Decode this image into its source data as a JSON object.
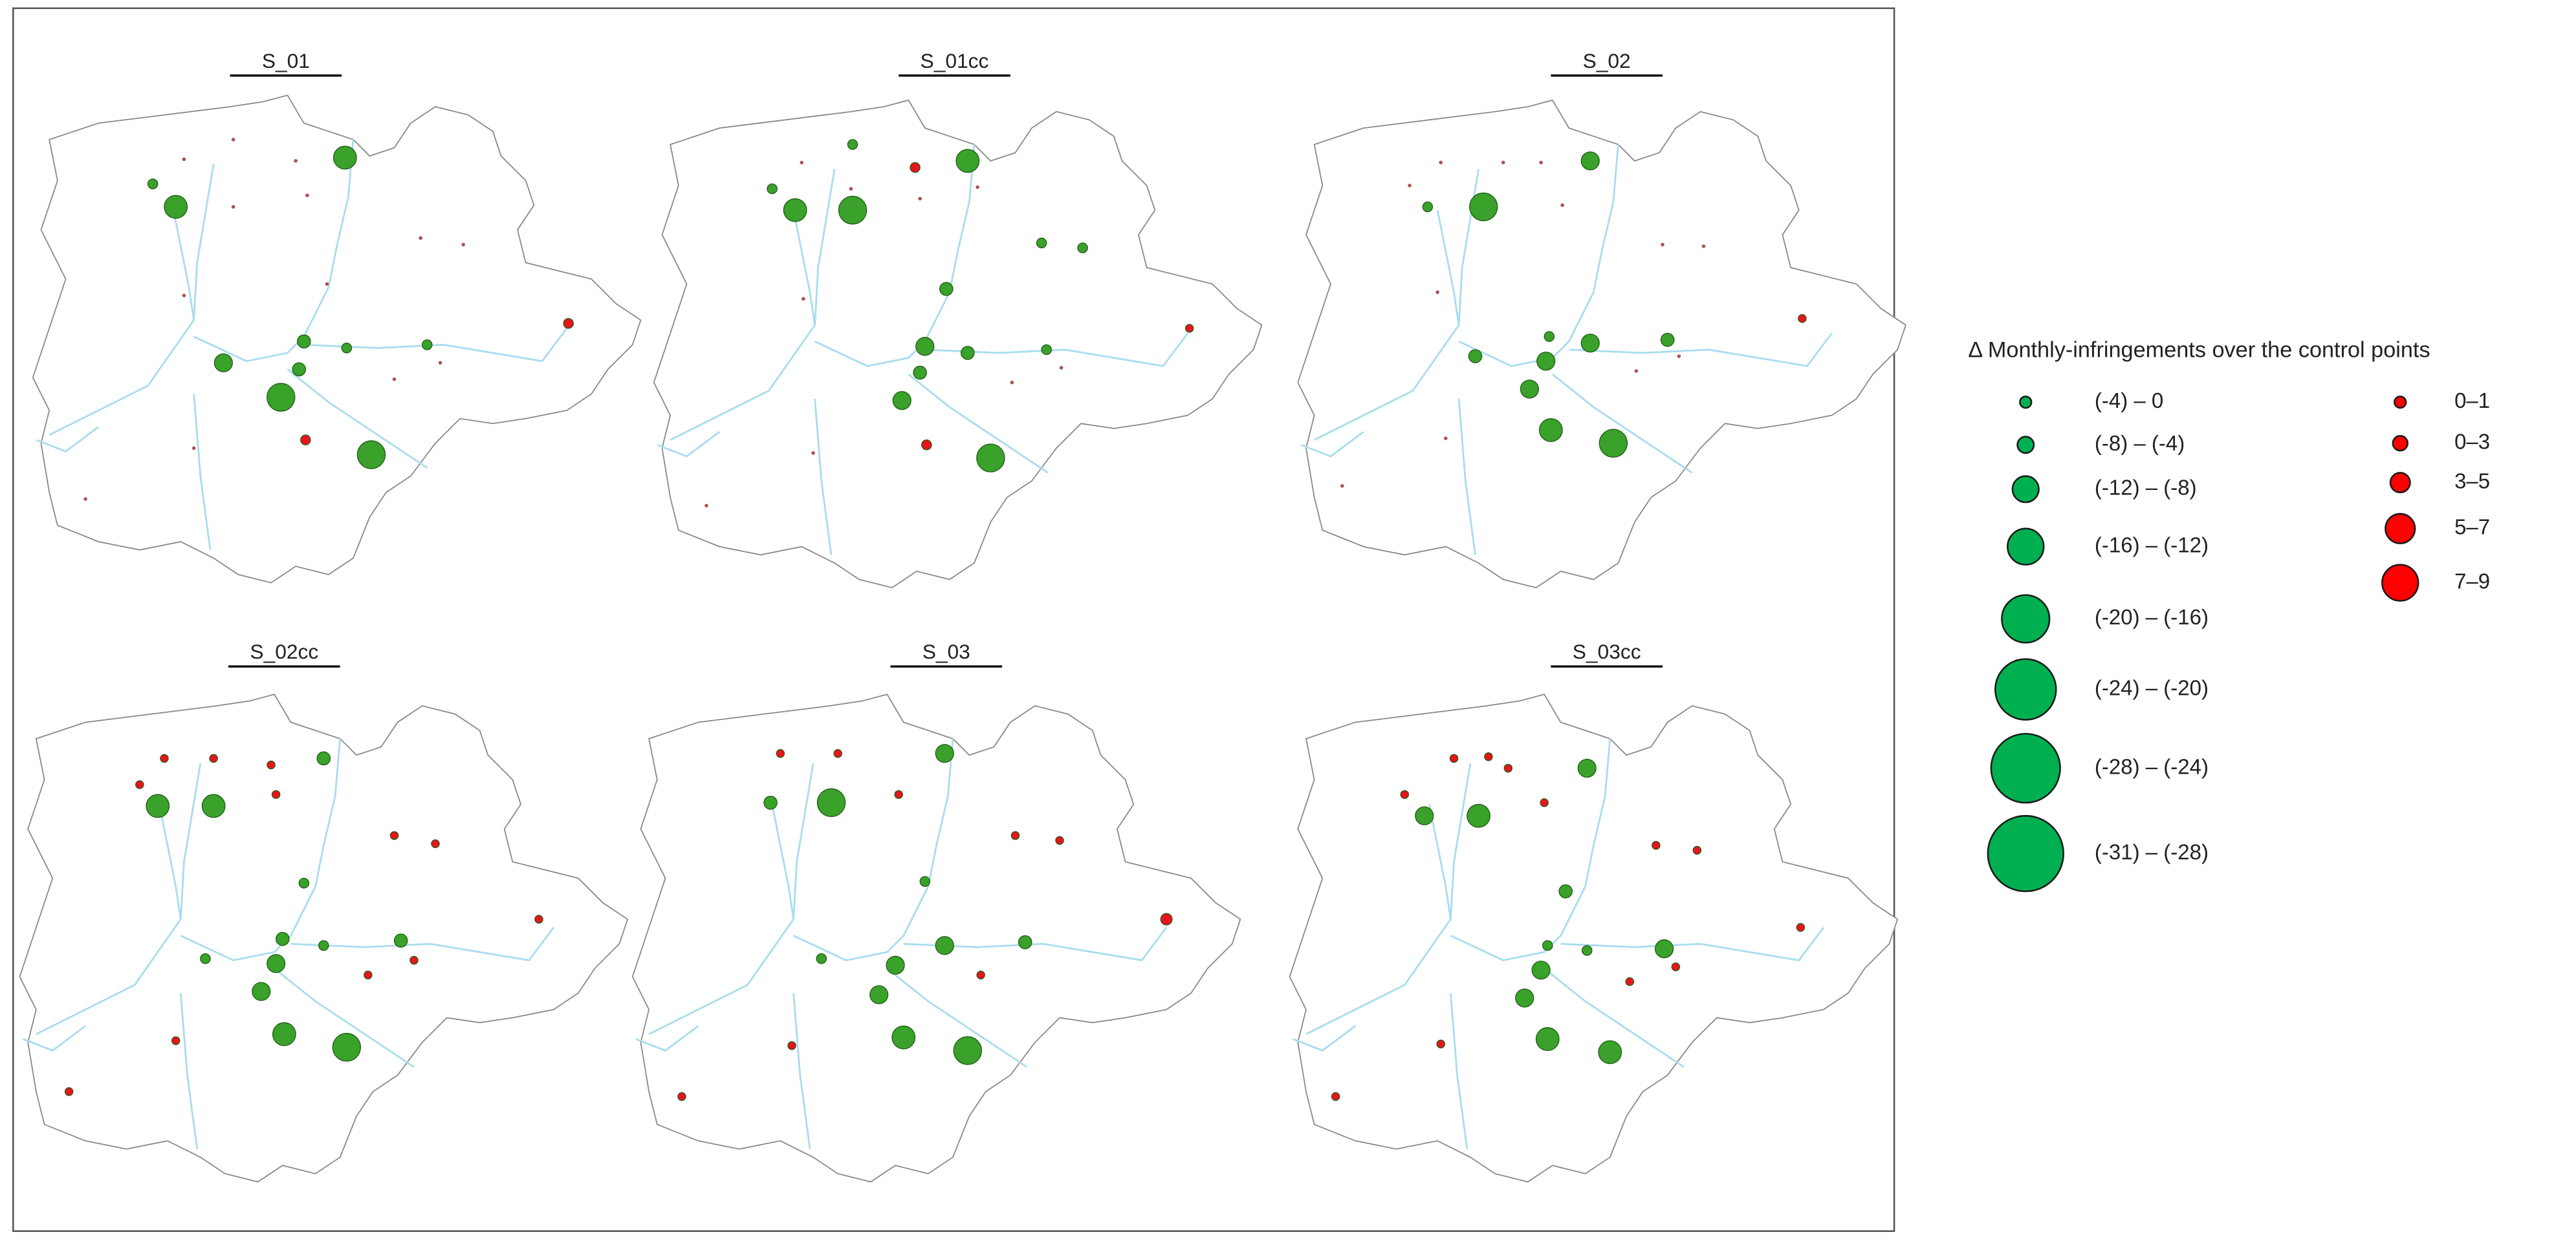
{
  "panels": [
    {
      "title": "S_01"
    },
    {
      "title": "S_01cc"
    },
    {
      "title": "S_02"
    },
    {
      "title": "S_02cc"
    },
    {
      "title": "S_03"
    },
    {
      "title": "S_03cc"
    }
  ],
  "legend": {
    "title": "Δ Monthly-infringements over the control points",
    "decrease": [
      "(-4) – 0",
      "(-8) – (-4)",
      "(-12) – (-8)",
      "(-16) – (-12)",
      "(-20) – (-16)",
      "(-24) – (-20)",
      "(-28) – (-24)",
      "(-31) – (-28)"
    ],
    "increase": [
      "0–1",
      "0–3",
      "3–5",
      "5–7",
      "7–9"
    ]
  }
}
